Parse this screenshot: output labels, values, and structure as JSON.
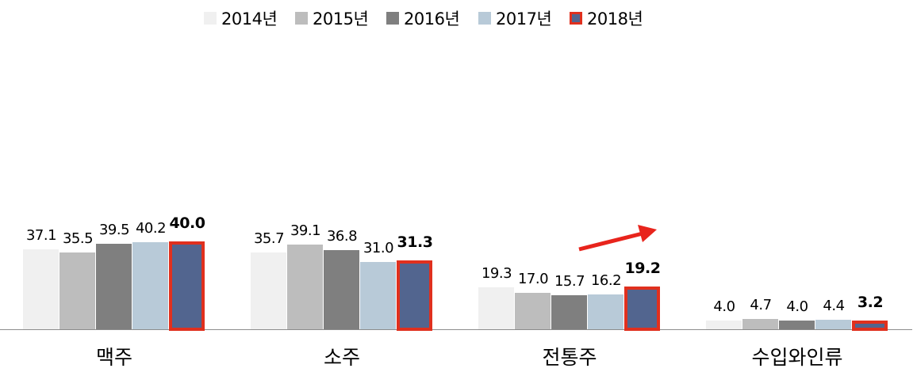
{
  "chart_data": {
    "type": "bar",
    "title": "",
    "xlabel": "",
    "ylabel": "",
    "categories": [
      "맥주",
      "소주",
      "전통주",
      "수입와인류"
    ],
    "series": [
      {
        "name": "2014년",
        "color": "#f0f0f0",
        "values": [
          37.1,
          35.7,
          19.3,
          4.0
        ]
      },
      {
        "name": "2015년",
        "color": "#bdbdbd",
        "values": [
          35.5,
          39.1,
          17.0,
          4.7
        ]
      },
      {
        "name": "2016년",
        "color": "#7f7f7f",
        "values": [
          39.5,
          36.8,
          15.7,
          4.0
        ]
      },
      {
        "name": "2017년",
        "color": "#b8cad8",
        "values": [
          40.2,
          31.0,
          16.2,
          4.4
        ]
      },
      {
        "name": "2018년",
        "color": "#52658f",
        "border": "#e0301e",
        "highlight": true,
        "values": [
          40.0,
          31.3,
          19.2,
          3.2
        ]
      }
    ],
    "value_labels": [
      [
        "37.1",
        "35.5",
        "39.5",
        "40.2",
        "40.0"
      ],
      [
        "35.7",
        "39.1",
        "36.8",
        "31.0",
        "31.3"
      ],
      [
        "19.3",
        "17.0",
        "15.7",
        "16.2",
        "19.2"
      ],
      [
        "4.0",
        "4.7",
        "4.0",
        "4.4",
        "3.2"
      ]
    ],
    "legend_position": "top",
    "grid": false,
    "ylim": [
      0,
      45
    ],
    "annotations": [
      {
        "type": "arrow",
        "color": "#e8241c",
        "near": "전통주",
        "direction": "up-right"
      }
    ]
  },
  "legend": [
    {
      "label": "2014년"
    },
    {
      "label": "2015년"
    },
    {
      "label": "2016년"
    },
    {
      "label": "2017년"
    },
    {
      "label": "2018년"
    }
  ]
}
